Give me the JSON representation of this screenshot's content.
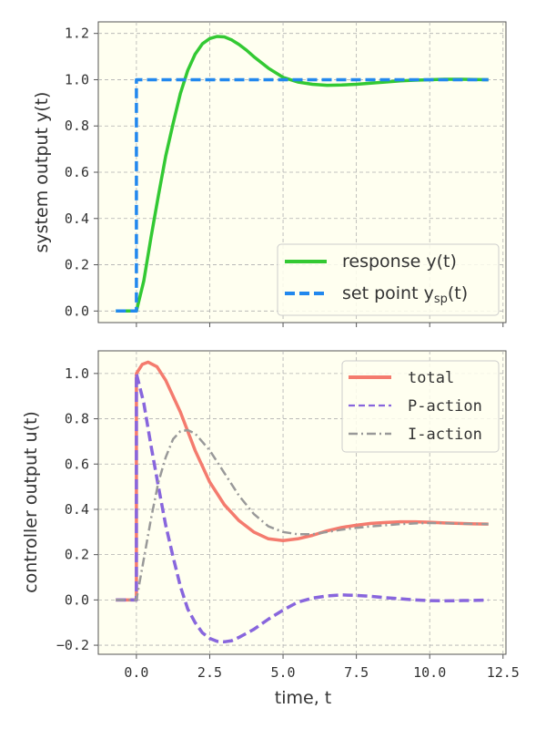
{
  "chart_data": [
    {
      "type": "line",
      "ylabel": "system output y(t)",
      "xlim": [
        -1.3,
        12.6
      ],
      "ylim": [
        -0.05,
        1.25
      ],
      "xticks": [
        0.0,
        2.5,
        5.0,
        7.5,
        10.0,
        12.5
      ],
      "yticks": [
        0.0,
        0.2,
        0.4,
        0.6,
        0.8,
        1.0,
        1.2
      ],
      "ytick_labels": [
        "0.0",
        "0.2",
        "0.4",
        "0.6",
        "0.8",
        "1.0",
        "1.2"
      ],
      "grid": true,
      "legend_position": "lower-right",
      "series": [
        {
          "name": "response y(t)",
          "color": "#33c933",
          "style": "solid",
          "x": [
            -0.7,
            0,
            0.25,
            0.5,
            0.75,
            1.0,
            1.25,
            1.5,
            1.75,
            2.0,
            2.25,
            2.5,
            2.75,
            3.0,
            3.25,
            3.5,
            3.75,
            4.0,
            4.5,
            5.0,
            5.5,
            6.0,
            6.5,
            7.0,
            7.5,
            8.0,
            8.5,
            9.0,
            9.5,
            10.0,
            10.5,
            11.0,
            11.5,
            12.0
          ],
          "y": [
            0,
            0,
            0.13,
            0.32,
            0.5,
            0.67,
            0.81,
            0.94,
            1.04,
            1.11,
            1.155,
            1.178,
            1.187,
            1.185,
            1.172,
            1.152,
            1.128,
            1.1,
            1.05,
            1.01,
            0.99,
            0.98,
            0.976,
            0.977,
            0.98,
            0.985,
            0.99,
            0.995,
            0.998,
            1.0,
            1.002,
            1.002,
            1.001,
            1.0
          ]
        },
        {
          "name": "set point y_sp(t)",
          "name_main": "set point y",
          "name_sub": "sp",
          "name_tail": "(t)",
          "color": "#2288ee",
          "style": "dashed",
          "x": [
            -0.7,
            0,
            0,
            12
          ],
          "y": [
            0,
            0,
            1,
            1
          ]
        }
      ]
    },
    {
      "type": "line",
      "ylabel": "controller output u(t)",
      "xlabel": "time, t",
      "xlim": [
        -1.3,
        12.6
      ],
      "ylim": [
        -0.24,
        1.1
      ],
      "xticks": [
        0.0,
        2.5,
        5.0,
        7.5,
        10.0,
        12.5
      ],
      "xtick_labels": [
        "0.0",
        "2.5",
        "5.0",
        "7.5",
        "10.0",
        "12.5"
      ],
      "yticks": [
        -0.2,
        0.0,
        0.2,
        0.4,
        0.6,
        0.8,
        1.0
      ],
      "ytick_labels": [
        "−0.2",
        "0.0",
        "0.2",
        "0.4",
        "0.6",
        "0.8",
        "1.0"
      ],
      "grid": true,
      "legend_position": "upper-right",
      "series": [
        {
          "name": "total",
          "color": "#f47b6e",
          "style": "solid",
          "x": [
            -0.7,
            0,
            0,
            0.2,
            0.4,
            0.7,
            1.0,
            1.5,
            2.0,
            2.5,
            3.0,
            3.5,
            4.0,
            4.5,
            5.0,
            5.5,
            6.0,
            6.5,
            7.0,
            7.5,
            8.0,
            8.5,
            9.0,
            9.5,
            10.0,
            10.5,
            11.0,
            11.5,
            12.0
          ],
          "y": [
            0,
            0,
            1.0,
            1.04,
            1.05,
            1.03,
            0.97,
            0.83,
            0.66,
            0.52,
            0.42,
            0.35,
            0.3,
            0.27,
            0.262,
            0.27,
            0.285,
            0.305,
            0.32,
            0.33,
            0.338,
            0.342,
            0.345,
            0.345,
            0.343,
            0.34,
            0.338,
            0.336,
            0.335
          ]
        },
        {
          "name": "P-action",
          "color": "#8866dd",
          "style": "dashed",
          "x": [
            -0.7,
            0,
            0,
            0.25,
            0.5,
            0.75,
            1.0,
            1.25,
            1.5,
            1.75,
            2.0,
            2.25,
            2.5,
            2.75,
            3.0,
            3.25,
            3.5,
            4.0,
            4.5,
            5.0,
            5.5,
            6.0,
            6.5,
            7.0,
            7.5,
            8.0,
            8.5,
            9.0,
            9.5,
            10.0,
            10.5,
            11.0,
            11.5,
            12.0
          ],
          "y": [
            0,
            0,
            1.0,
            0.87,
            0.68,
            0.5,
            0.33,
            0.19,
            0.06,
            -0.04,
            -0.1,
            -0.145,
            -0.17,
            -0.183,
            -0.185,
            -0.18,
            -0.165,
            -0.13,
            -0.085,
            -0.045,
            -0.01,
            0.008,
            0.018,
            0.022,
            0.02,
            0.016,
            0.01,
            0.005,
            0.0,
            -0.003,
            -0.004,
            -0.003,
            -0.002,
            0.0
          ]
        },
        {
          "name": "I-action",
          "color": "#999999",
          "style": "dashdot",
          "x": [
            -0.7,
            0,
            0.25,
            0.5,
            0.75,
            1.0,
            1.25,
            1.5,
            1.75,
            2.0,
            2.5,
            3.0,
            3.5,
            4.0,
            4.5,
            5.0,
            5.5,
            6.0,
            6.5,
            7.0,
            7.5,
            8.0,
            8.5,
            9.0,
            9.5,
            10.0,
            10.5,
            11.0,
            11.5,
            12.0
          ],
          "y": [
            0,
            0,
            0.18,
            0.36,
            0.52,
            0.63,
            0.71,
            0.745,
            0.75,
            0.735,
            0.66,
            0.56,
            0.46,
            0.38,
            0.325,
            0.3,
            0.29,
            0.29,
            0.3,
            0.31,
            0.318,
            0.325,
            0.33,
            0.335,
            0.338,
            0.34,
            0.339,
            0.337,
            0.336,
            0.335
          ]
        }
      ]
    }
  ]
}
